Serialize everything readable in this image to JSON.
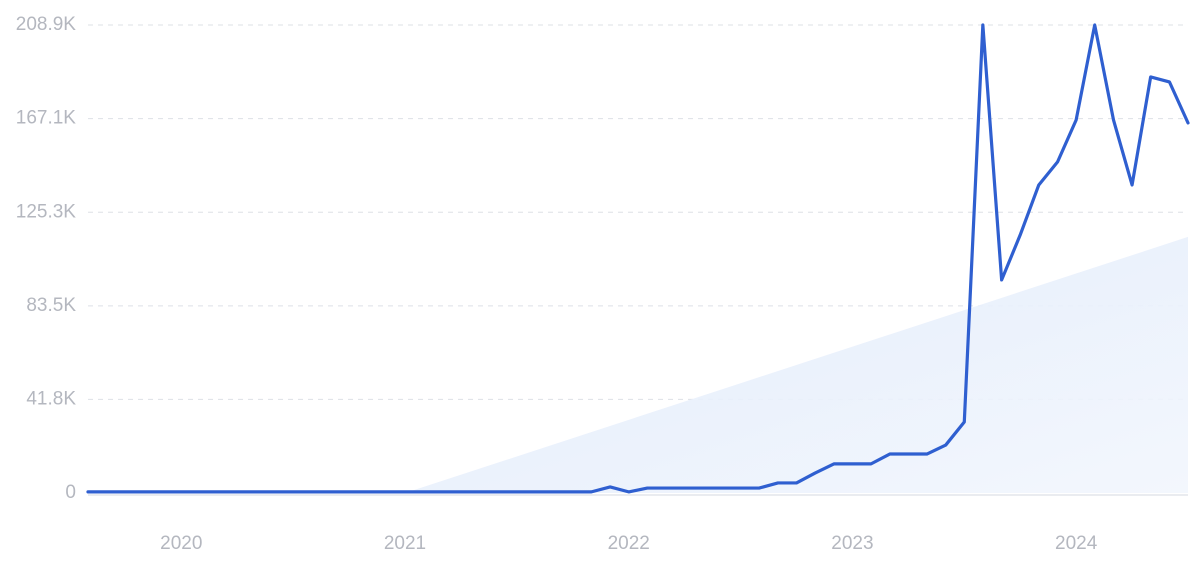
{
  "chart_data": {
    "type": "line",
    "x": [
      2019.583,
      2019.667,
      2019.75,
      2019.833,
      2019.917,
      2020.0,
      2020.083,
      2020.167,
      2020.25,
      2020.333,
      2020.417,
      2020.5,
      2020.583,
      2020.667,
      2020.75,
      2020.833,
      2020.917,
      2021.0,
      2021.083,
      2021.167,
      2021.25,
      2021.333,
      2021.417,
      2021.5,
      2021.583,
      2021.667,
      2021.75,
      2021.833,
      2021.917,
      2022.0,
      2022.083,
      2022.167,
      2022.25,
      2022.333,
      2022.417,
      2022.5,
      2022.583,
      2022.667,
      2022.75,
      2022.833,
      2022.917,
      2023.0,
      2023.083,
      2023.167,
      2023.25,
      2023.333,
      2023.417,
      2023.5,
      2023.583,
      2023.667,
      2023.75,
      2023.833,
      2023.917,
      2024.0,
      2024.083,
      2024.167,
      2024.25,
      2024.333,
      2024.417,
      2024.5
    ],
    "series": [
      {
        "color": "#2f5fd0",
        "values": [
          500,
          500,
          500,
          500,
          500,
          500,
          500,
          500,
          500,
          500,
          500,
          500,
          500,
          500,
          500,
          500,
          500,
          500,
          500,
          500,
          500,
          500,
          500,
          500,
          500,
          500,
          500,
          500,
          2700,
          500,
          2200,
          2200,
          2200,
          2200,
          2200,
          2200,
          2200,
          4500,
          4500,
          8900,
          13000,
          13000,
          13000,
          17400,
          17400,
          17400,
          21400,
          31700,
          208900,
          95100,
          115200,
          137500,
          147800,
          166500,
          208900,
          166500,
          137500,
          185700,
          183500,
          165200
        ]
      }
    ],
    "trend": {
      "color": "#e6effc",
      "x": [
        2021.0,
        2024.5
      ],
      "values": [
        0,
        114300
      ]
    },
    "xlim": [
      2019.583,
      2024.5
    ],
    "xticks": [
      2020,
      2021,
      2022,
      2023,
      2024
    ],
    "ylim": [
      0,
      208900
    ],
    "yticks": [
      0,
      {
        "value": 41800,
        "label": "41.8K"
      },
      {
        "value": 83500,
        "label": "83.5K"
      },
      {
        "value": 125300,
        "label": "125.3K"
      },
      {
        "value": 167100,
        "label": "167.1K"
      },
      {
        "value": 208900,
        "label": "208.9K"
      }
    ],
    "grid": true
  }
}
